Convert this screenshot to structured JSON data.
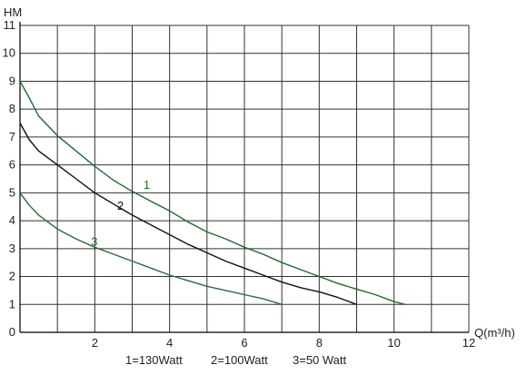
{
  "chart_data": {
    "type": "line",
    "title": "",
    "xlabel": "Q(m³/h)",
    "ylabel": "HM",
    "xlim": [
      0,
      12
    ],
    "ylim": [
      0,
      11
    ],
    "x_ticks": [
      "2",
      "4",
      "6",
      "8",
      "10",
      "12"
    ],
    "y_ticks": [
      "0",
      "1",
      "2",
      "3",
      "4",
      "5",
      "6",
      "7",
      "8",
      "9",
      "10",
      "11"
    ],
    "grid": true,
    "series": [
      {
        "name": "1",
        "color": "#1a6b2c",
        "x": [
          0,
          0.25,
          0.5,
          1,
          1.5,
          2,
          2.5,
          3,
          3.5,
          4,
          4.5,
          5,
          5.5,
          6,
          6.5,
          7,
          7.5,
          8,
          8.5,
          9,
          9.5,
          10,
          10.3
        ],
        "y": [
          9.0,
          8.4,
          7.75,
          7.05,
          6.5,
          5.95,
          5.45,
          5.05,
          4.7,
          4.35,
          3.95,
          3.6,
          3.35,
          3.05,
          2.8,
          2.5,
          2.25,
          2.0,
          1.75,
          1.55,
          1.35,
          1.1,
          1.0
        ]
      },
      {
        "name": "2",
        "color": "#111111",
        "x": [
          0,
          0.25,
          0.5,
          1,
          1.5,
          2,
          2.5,
          3,
          3.5,
          4,
          4.5,
          5,
          5.5,
          6,
          6.5,
          7,
          7.5,
          8,
          8.5,
          9
        ],
        "y": [
          7.5,
          6.9,
          6.5,
          6.0,
          5.5,
          5.0,
          4.6,
          4.2,
          3.85,
          3.5,
          3.15,
          2.85,
          2.55,
          2.3,
          2.05,
          1.8,
          1.6,
          1.45,
          1.25,
          1.0
        ]
      },
      {
        "name": "3",
        "color": "#2a6b3a",
        "x": [
          0,
          0.25,
          0.5,
          1,
          1.5,
          2,
          2.5,
          3,
          3.5,
          4,
          4.5,
          5,
          5.5,
          6,
          6.5,
          7
        ],
        "y": [
          5.0,
          4.55,
          4.2,
          3.7,
          3.35,
          3.05,
          2.8,
          2.55,
          2.3,
          2.05,
          1.85,
          1.65,
          1.5,
          1.35,
          1.2,
          1.0
        ]
      }
    ],
    "curve_labels": [
      {
        "text": "1",
        "x": 3.3,
        "y": 5.15,
        "color": "#1a6b2c"
      },
      {
        "text": "2",
        "x": 2.6,
        "y": 4.4,
        "color": "#111111"
      },
      {
        "text": "3",
        "x": 1.9,
        "y": 3.1,
        "color": "#2a6b3a"
      }
    ],
    "legend": [
      "1=130Watt",
      "2=100Watt",
      "3=50 Watt"
    ]
  }
}
